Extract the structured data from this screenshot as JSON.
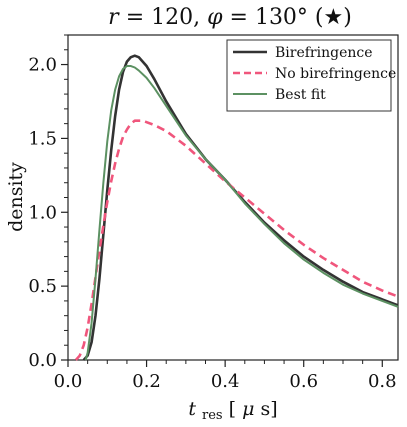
{
  "chart_data": {
    "type": "line",
    "title": "r = 120, φ = 130° (★)",
    "title_parts": {
      "r_symbol": "r",
      "r_value": "= 120, ",
      "phi_symbol": "φ",
      "phi_value": "= 130° (★)"
    },
    "xlabel": "t_res [μs]",
    "xlabel_parts": {
      "main": "t",
      "sub": "res",
      "unit_open": " [",
      "unit_mu": "μ",
      "unit_rest": "s]"
    },
    "ylabel": "density",
    "xlim": [
      0.0,
      0.84
    ],
    "ylim": [
      0.0,
      2.2
    ],
    "x_ticks": [
      0.0,
      0.2,
      0.4,
      0.6,
      0.8
    ],
    "x_tick_labels": [
      "0.0",
      "0.2",
      "0.4",
      "0.6",
      "0.8"
    ],
    "y_ticks": [
      0.0,
      0.5,
      1.0,
      1.5,
      2.0
    ],
    "y_tick_labels": [
      "0.0",
      "0.5",
      "1.0",
      "1.5",
      "2.0"
    ],
    "grid": false,
    "legend_position": "top-right",
    "series": [
      {
        "name": "Birefringence",
        "color": "#333333",
        "style": "solid",
        "x": [
          0.04,
          0.05,
          0.06,
          0.07,
          0.08,
          0.09,
          0.1,
          0.11,
          0.12,
          0.13,
          0.14,
          0.15,
          0.16,
          0.17,
          0.18,
          0.2,
          0.22,
          0.25,
          0.3,
          0.35,
          0.4,
          0.45,
          0.5,
          0.55,
          0.6,
          0.65,
          0.7,
          0.75,
          0.8,
          0.84
        ],
        "y": [
          0.0,
          0.03,
          0.12,
          0.3,
          0.55,
          0.85,
          1.15,
          1.42,
          1.65,
          1.83,
          1.95,
          2.02,
          2.05,
          2.06,
          2.05,
          1.99,
          1.9,
          1.75,
          1.53,
          1.36,
          1.22,
          1.07,
          0.93,
          0.81,
          0.7,
          0.61,
          0.53,
          0.46,
          0.41,
          0.37
        ]
      },
      {
        "name": "No birefringence",
        "color": "#f0567c",
        "style": "dashed",
        "x": [
          0.02,
          0.03,
          0.04,
          0.05,
          0.06,
          0.07,
          0.08,
          0.09,
          0.1,
          0.11,
          0.12,
          0.13,
          0.14,
          0.15,
          0.16,
          0.17,
          0.18,
          0.19,
          0.2,
          0.22,
          0.25,
          0.3,
          0.35,
          0.4,
          0.45,
          0.5,
          0.55,
          0.6,
          0.65,
          0.7,
          0.75,
          0.8,
          0.84
        ],
        "y": [
          0.0,
          0.03,
          0.1,
          0.22,
          0.38,
          0.56,
          0.74,
          0.91,
          1.07,
          1.21,
          1.33,
          1.43,
          1.51,
          1.56,
          1.6,
          1.62,
          1.62,
          1.62,
          1.61,
          1.59,
          1.55,
          1.45,
          1.33,
          1.21,
          1.1,
          0.99,
          0.88,
          0.78,
          0.69,
          0.61,
          0.53,
          0.47,
          0.43
        ]
      },
      {
        "name": "Best fit",
        "color": "#5c9162",
        "style": "solid",
        "x": [
          0.045,
          0.05,
          0.06,
          0.07,
          0.08,
          0.09,
          0.1,
          0.11,
          0.12,
          0.13,
          0.14,
          0.15,
          0.16,
          0.17,
          0.18,
          0.2,
          0.22,
          0.25,
          0.3,
          0.35,
          0.4,
          0.45,
          0.5,
          0.55,
          0.6,
          0.65,
          0.7,
          0.75,
          0.8,
          0.84
        ],
        "y": [
          0.0,
          0.05,
          0.25,
          0.55,
          0.88,
          1.2,
          1.48,
          1.69,
          1.83,
          1.92,
          1.97,
          1.99,
          1.99,
          1.98,
          1.96,
          1.91,
          1.84,
          1.72,
          1.52,
          1.36,
          1.22,
          1.06,
          0.92,
          0.79,
          0.68,
          0.59,
          0.51,
          0.45,
          0.4,
          0.36
        ]
      }
    ]
  }
}
